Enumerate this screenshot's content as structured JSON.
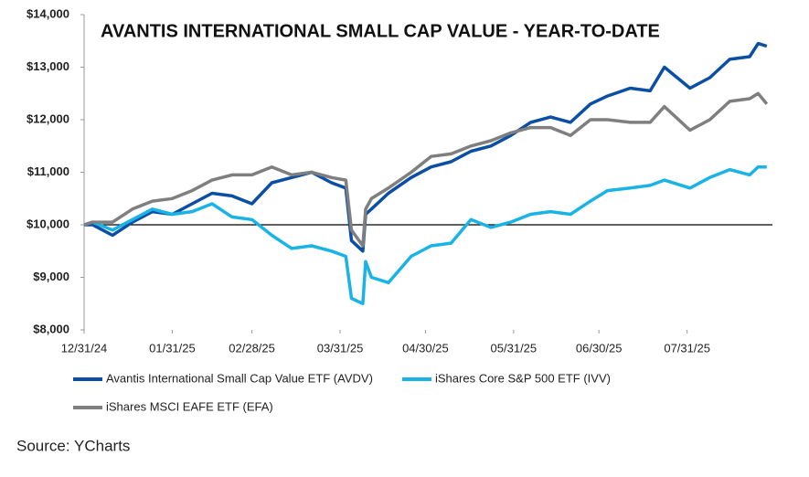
{
  "chart_data": {
    "type": "line",
    "title": "AVANTIS INTERNATIONAL SMALL CAP VALUE - YEAR-TO-DATE",
    "x": [
      "12/31/24",
      "01/03/25",
      "01/10/25",
      "01/17/25",
      "01/24/25",
      "01/31/25",
      "02/07/25",
      "02/14/25",
      "02/21/25",
      "02/28/25",
      "03/07/25",
      "03/14/25",
      "03/21/25",
      "03/28/25",
      "04/02/25",
      "04/04/25",
      "04/08/25",
      "04/09/25",
      "04/11/25",
      "04/17/25",
      "04/25/25",
      "05/02/25",
      "05/09/25",
      "05/16/25",
      "05/23/25",
      "05/30/25",
      "06/06/25",
      "06/13/25",
      "06/20/25",
      "06/27/25",
      "07/03/25",
      "07/11/25",
      "07/18/25",
      "07/23/25",
      "08/01/25",
      "08/08/25",
      "08/15/25",
      "08/22/25",
      "08/25/25",
      "08/28/25"
    ],
    "series": [
      {
        "name": "Avantis International Small Cap Value ETF (AVDV)",
        "color": "#0a4fa3",
        "values": [
          10000,
          10000,
          9800,
          10050,
          10250,
          10200,
          10400,
          10600,
          10550,
          10400,
          10800,
          10900,
          11000,
          10800,
          10700,
          9700,
          9500,
          10200,
          10300,
          10600,
          10900,
          11100,
          11200,
          11400,
          11500,
          11700,
          11950,
          12050,
          11950,
          12300,
          12450,
          12600,
          12550,
          13000,
          12600,
          12800,
          13150,
          13200,
          13450,
          13400
        ]
      },
      {
        "name": "iShares Core S&P 500 ETF (IVV)",
        "color": "#1ab3e6",
        "values": [
          10000,
          10050,
          9900,
          10100,
          10300,
          10200,
          10250,
          10400,
          10150,
          10100,
          9800,
          9550,
          9600,
          9500,
          9400,
          8600,
          8500,
          9300,
          9000,
          8900,
          9400,
          9600,
          9650,
          10100,
          9950,
          10050,
          10200,
          10250,
          10200,
          10450,
          10650,
          10700,
          10750,
          10850,
          10700,
          10900,
          11050,
          10950,
          11100,
          11100
        ]
      },
      {
        "name": "iShares MSCI EAFE ETF (EFA)",
        "color": "#7f7f7f",
        "values": [
          10000,
          10050,
          10050,
          10300,
          10450,
          10500,
          10650,
          10850,
          10950,
          10950,
          11100,
          10950,
          11000,
          10900,
          10850,
          9900,
          9600,
          10300,
          10500,
          10700,
          11000,
          11300,
          11350,
          11500,
          11600,
          11750,
          11850,
          11850,
          11700,
          12000,
          12000,
          11950,
          11950,
          12250,
          11800,
          12000,
          12350,
          12400,
          12500,
          12300
        ]
      }
    ],
    "xlim": [
      "12/31/24",
      "08/30/25"
    ],
    "xticks": [
      "12/31/24",
      "01/31/25",
      "02/28/25",
      "03/31/25",
      "04/30/25",
      "05/31/25",
      "06/30/25",
      "07/31/25"
    ],
    "ylim": [
      8000,
      14000
    ],
    "yticks": [
      {
        "value": 8000,
        "label": "$8,000"
      },
      {
        "value": 9000,
        "label": "$9,000"
      },
      {
        "value": 10000,
        "label": "$10,000"
      },
      {
        "value": 11000,
        "label": "$11,000"
      },
      {
        "value": 12000,
        "label": "$12,000"
      },
      {
        "value": 13000,
        "label": "$13,000"
      },
      {
        "value": 14000,
        "label": "$14,000"
      }
    ],
    "hline": 10000,
    "source": "Source: YCharts"
  }
}
